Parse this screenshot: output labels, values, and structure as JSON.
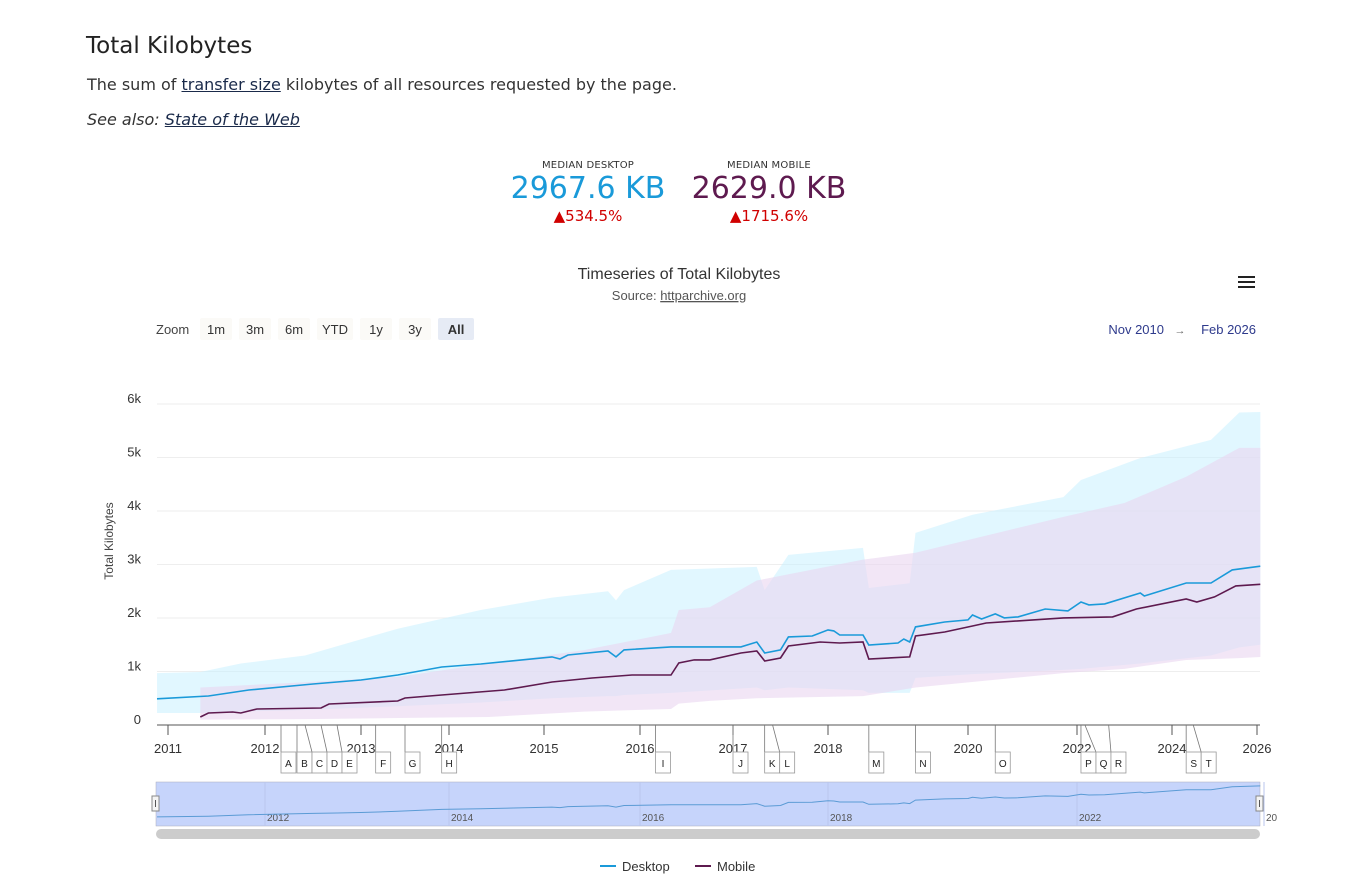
{
  "page": {
    "title": "Total Kilobytes",
    "desc_before": "The sum of ",
    "desc_link": "transfer size",
    "desc_after": " kilobytes of all resources requested by the page.",
    "see_also_label": "See also: ",
    "see_also_link": "State of the Web"
  },
  "kpis": {
    "desktop": {
      "label": "MEDIAN DESKTOP",
      "value": "2967.6 KB",
      "change": "▲534.5%",
      "color": "#1a9ad9"
    },
    "mobile": {
      "label": "MEDIAN MOBILE",
      "value": "2629.0 KB",
      "change": "▲1715.6%",
      "color": "#5e1a4f"
    }
  },
  "chart_data": {
    "type": "line",
    "title": "Timeseries of Total Kilobytes",
    "subtitle_prefix": "Source: ",
    "subtitle_link": "httparchive.org",
    "menu_icon": "hamburger-menu-icon",
    "range_selector": {
      "label": "Zoom",
      "buttons": [
        "1m",
        "3m",
        "6m",
        "YTD",
        "1y",
        "3y",
        "All"
      ],
      "selected": "All"
    },
    "range_from": "Nov 2010",
    "range_arrow": "→",
    "range_to": "Feb 2026",
    "ylabel": "Total Kilobytes",
    "ylim": [
      0,
      6000
    ],
    "yticks": [
      "0",
      "1k",
      "2k",
      "3k",
      "4k",
      "5k",
      "6k"
    ],
    "xticks": [
      "2011",
      "2012",
      "2013",
      "2014",
      "2015",
      "2016",
      "2017",
      "2018",
      "2020",
      "2022",
      "2024",
      "2026"
    ],
    "grid": true,
    "legend_placement": "bottom",
    "series": [
      {
        "name": "Desktop",
        "color": "#1a9ad9",
        "band_color": "#c9f0ff",
        "values": [
          [
            "2010-11",
            490
          ],
          [
            "2011-06",
            542
          ],
          [
            "2011-11",
            655
          ],
          [
            "2012-07",
            767
          ],
          [
            "2012-10",
            804
          ],
          [
            "2013-01",
            842
          ],
          [
            "2013-06",
            935
          ],
          [
            "2013-12",
            1085
          ],
          [
            "2014-05",
            1141
          ],
          [
            "2015-02",
            1272
          ],
          [
            "2015-03",
            1234
          ],
          [
            "2015-04",
            1309
          ],
          [
            "2015-09",
            1384
          ],
          [
            "2015-10",
            1272
          ],
          [
            "2015-11",
            1403
          ],
          [
            "2016-05",
            1459
          ],
          [
            "2017-02",
            1459
          ],
          [
            "2017-04",
            1552
          ],
          [
            "2017-05",
            1346
          ],
          [
            "2017-07",
            1403
          ],
          [
            "2017-08",
            1646
          ],
          [
            "2017-11",
            1664
          ],
          [
            "2018-01",
            1777
          ],
          [
            "2018-02",
            1758
          ],
          [
            "2018-03",
            1683
          ],
          [
            "2018-07",
            1683
          ],
          [
            "2018-08",
            1496
          ],
          [
            "2019-01",
            1533
          ],
          [
            "2019-02",
            1608
          ],
          [
            "2019-03",
            1552
          ],
          [
            "2019-04",
            1833
          ],
          [
            "2019-09",
            1926
          ],
          [
            "2020-01",
            1964
          ],
          [
            "2020-02",
            2057
          ],
          [
            "2020-04",
            1982
          ],
          [
            "2020-07",
            2076
          ],
          [
            "2020-09",
            2001
          ],
          [
            "2020-12",
            2020
          ],
          [
            "2021-06",
            2169
          ],
          [
            "2021-11",
            2132
          ],
          [
            "2022-02",
            2300
          ],
          [
            "2022-04",
            2244
          ],
          [
            "2022-08",
            2263
          ],
          [
            "2023-05",
            2468
          ],
          [
            "2023-06",
            2412
          ],
          [
            "2024-05",
            2655
          ],
          [
            "2024-12",
            2655
          ],
          [
            "2025-06",
            2899
          ],
          [
            "2026-02",
            2968
          ]
        ],
        "range": [
          [
            "2010-11",
            225,
            970
          ],
          [
            "2011-05",
            225,
            990
          ],
          [
            "2011-10",
            250,
            1150
          ],
          [
            "2012-06",
            280,
            1300
          ],
          [
            "2013-06",
            350,
            1800
          ],
          [
            "2014-05",
            420,
            2150
          ],
          [
            "2015-02",
            500,
            2380
          ],
          [
            "2015-09",
            540,
            2500
          ],
          [
            "2015-10",
            540,
            2330
          ],
          [
            "2015-11",
            560,
            2520
          ],
          [
            "2016-05",
            600,
            2900
          ],
          [
            "2017-04",
            700,
            2955
          ],
          [
            "2017-05",
            650,
            2520
          ],
          [
            "2017-08",
            700,
            3180
          ],
          [
            "2018-07",
            650,
            3310
          ],
          [
            "2018-08",
            600,
            2560
          ],
          [
            "2019-03",
            600,
            2650
          ],
          [
            "2019-04",
            880,
            3590
          ],
          [
            "2020-02",
            950,
            3930
          ],
          [
            "2021-10",
            1030,
            4260
          ],
          [
            "2022-02",
            1050,
            4580
          ],
          [
            "2023-05",
            1150,
            4990
          ],
          [
            "2024-12",
            1300,
            5330
          ],
          [
            "2025-08",
            1450,
            5840
          ],
          [
            "2026-02",
            1500,
            5850
          ]
        ]
      },
      {
        "name": "Mobile",
        "color": "#5e1a4f",
        "band_color": "#ead6f0",
        "values": [
          [
            "2011-05",
            150
          ],
          [
            "2011-06",
            224
          ],
          [
            "2011-09",
            243
          ],
          [
            "2011-10",
            224
          ],
          [
            "2011-12",
            299
          ],
          [
            "2012-08",
            318
          ],
          [
            "2012-09",
            393
          ],
          [
            "2013-06",
            449
          ],
          [
            "2013-07",
            505
          ],
          [
            "2013-12",
            561
          ],
          [
            "2014-08",
            655
          ],
          [
            "2015-02",
            804
          ],
          [
            "2015-07",
            879
          ],
          [
            "2015-12",
            935
          ],
          [
            "2016-05",
            935
          ],
          [
            "2016-06",
            1159
          ],
          [
            "2016-08",
            1216
          ],
          [
            "2016-10",
            1216
          ],
          [
            "2017-02",
            1346
          ],
          [
            "2017-04",
            1384
          ],
          [
            "2017-05",
            1197
          ],
          [
            "2017-07",
            1253
          ],
          [
            "2017-08",
            1477
          ],
          [
            "2017-12",
            1552
          ],
          [
            "2018-03",
            1533
          ],
          [
            "2018-07",
            1552
          ],
          [
            "2018-08",
            1234
          ],
          [
            "2019-03",
            1272
          ],
          [
            "2019-04",
            1664
          ],
          [
            "2019-09",
            1739
          ],
          [
            "2020-02",
            1851
          ],
          [
            "2020-05",
            1907
          ],
          [
            "2021-10",
            2001
          ],
          [
            "2022-10",
            2020
          ],
          [
            "2023-04",
            2169
          ],
          [
            "2024-05",
            2356
          ],
          [
            "2024-08",
            2300
          ],
          [
            "2025-01",
            2394
          ],
          [
            "2025-07",
            2600
          ],
          [
            "2026-02",
            2629
          ]
        ],
        "range": [
          [
            "2011-05",
            100,
            700
          ],
          [
            "2012-06",
            110,
            800
          ],
          [
            "2013-06",
            130,
            900
          ],
          [
            "2014-06",
            150,
            1150
          ],
          [
            "2015-06",
            250,
            1400
          ],
          [
            "2016-05",
            300,
            1720
          ],
          [
            "2016-06",
            400,
            2150
          ],
          [
            "2016-10",
            450,
            2200
          ],
          [
            "2017-04",
            500,
            2700
          ],
          [
            "2018-07",
            540,
            3090
          ],
          [
            "2019-04",
            700,
            3220
          ],
          [
            "2021-10",
            970,
            3890
          ],
          [
            "2023-01",
            1050,
            4150
          ],
          [
            "2024-05",
            1215,
            4640
          ],
          [
            "2025-08",
            1250,
            5180
          ],
          [
            "2026-02",
            1270,
            5180
          ]
        ]
      }
    ],
    "annotations": [
      {
        "label": "A",
        "date": "2012-03"
      },
      {
        "label": "B",
        "date": "2012-05"
      },
      {
        "label": "C",
        "date": "2012-06"
      },
      {
        "label": "D",
        "date": "2012-08"
      },
      {
        "label": "E",
        "date": "2012-10"
      },
      {
        "label": "F",
        "date": "2013-03"
      },
      {
        "label": "G",
        "date": "2013-07"
      },
      {
        "label": "H",
        "date": "2013-12"
      },
      {
        "label": "I",
        "date": "2016-03"
      },
      {
        "label": "J",
        "date": "2017-01"
      },
      {
        "label": "K",
        "date": "2017-05"
      },
      {
        "label": "L",
        "date": "2017-06"
      },
      {
        "label": "M",
        "date": "2018-08"
      },
      {
        "label": "N",
        "date": "2019-04"
      },
      {
        "label": "O",
        "date": "2020-07"
      },
      {
        "label": "P",
        "date": "2022-02"
      },
      {
        "label": "Q",
        "date": "2022-03"
      },
      {
        "label": "R",
        "date": "2022-09"
      },
      {
        "label": "S",
        "date": "2024-05"
      },
      {
        "label": "T",
        "date": "2024-07"
      }
    ],
    "navigator": {
      "labels": [
        "2012",
        "2014",
        "2016",
        "2018",
        "2022",
        "20"
      ]
    }
  }
}
